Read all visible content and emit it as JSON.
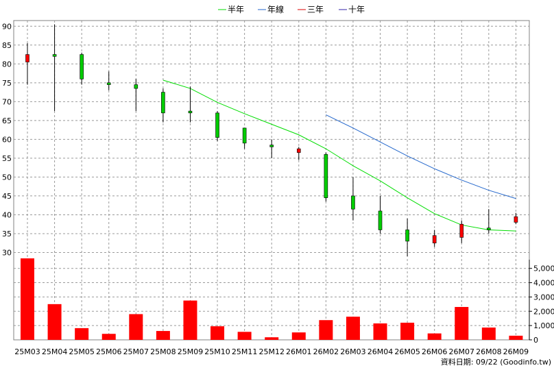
{
  "chart_data": {
    "type": "candlestick+volume",
    "legend": [
      {
        "label": "半年",
        "color": "#00dd00"
      },
      {
        "label": "年線",
        "color": "#2266cc"
      },
      {
        "label": "三年",
        "color": "#dd0000"
      },
      {
        "label": "十年",
        "color": "#3322aa"
      }
    ],
    "categories": [
      "25M03",
      "25M04",
      "25M05",
      "25M06",
      "25M07",
      "25M08",
      "25M09",
      "25M10",
      "25M11",
      "25M12",
      "26M01",
      "26M02",
      "26M03",
      "26M04",
      "26M05",
      "26M06",
      "26M07",
      "26M08",
      "26M09"
    ],
    "price_axis": {
      "ylim": [
        27,
        91.5
      ],
      "ticks": [
        30,
        35,
        40,
        45,
        50,
        55,
        60,
        65,
        70,
        75,
        80,
        85,
        90
      ]
    },
    "volume_axis": {
      "ylim": [
        0,
        5800
      ],
      "ticks": [
        0,
        1000,
        2000,
        3000,
        4000,
        5000
      ],
      "tick_labels": [
        "0",
        "1,000",
        "2,000",
        "3,000",
        "4,000",
        "5,000"
      ]
    },
    "candles": [
      {
        "open": 80.5,
        "close": 82.5,
        "high": 85.5,
        "low": 74.5
      },
      {
        "open": 82.5,
        "close": 82.0,
        "high": 90.5,
        "low": 67.5
      },
      {
        "open": 82.5,
        "close": 76.0,
        "high": 83.0,
        "low": 74.5
      },
      {
        "open": 75.0,
        "close": 74.5,
        "high": 78.0,
        "low": 73.0
      },
      {
        "open": 74.5,
        "close": 73.5,
        "high": 76.0,
        "low": 67.5
      },
      {
        "open": 72.5,
        "close": 67.0,
        "high": 73.5,
        "low": 64.5
      },
      {
        "open": 67.5,
        "close": 67.0,
        "high": 74.0,
        "low": 64.5
      },
      {
        "open": 67.0,
        "close": 60.5,
        "high": 67.5,
        "low": 59.5
      },
      {
        "open": 63.0,
        "close": 59.0,
        "high": 63.0,
        "low": 57.5
      },
      {
        "open": 58.5,
        "close": 58.0,
        "high": 60.0,
        "low": 55.0
      },
      {
        "open": 56.5,
        "close": 57.5,
        "high": 58.0,
        "low": 54.5
      },
      {
        "open": 56.0,
        "close": 44.5,
        "high": 56.5,
        "low": 43.5
      },
      {
        "open": 45.0,
        "close": 41.5,
        "high": 50.0,
        "low": 38.5
      },
      {
        "open": 41.0,
        "close": 36.0,
        "high": 45.0,
        "low": 35.0
      },
      {
        "open": 36.0,
        "close": 33.0,
        "high": 39.0,
        "low": 29.0
      },
      {
        "open": 32.5,
        "close": 34.5,
        "high": 36.0,
        "low": 31.5
      },
      {
        "open": 34.0,
        "close": 37.5,
        "high": 38.5,
        "low": 32.5
      },
      {
        "open": 36.5,
        "close": 36.0,
        "high": 41.5,
        "low": 35.0
      },
      {
        "open": 38.0,
        "close": 39.5,
        "high": 40.5,
        "low": 37.5
      }
    ],
    "half_year_ma": [
      null,
      null,
      null,
      null,
      null,
      75.7,
      73.5,
      69.8,
      66.8,
      64.0,
      61.2,
      57.5,
      53.0,
      49.0,
      44.5,
      40.3,
      37.3,
      36.0,
      35.7
    ],
    "annual_ma": [
      null,
      null,
      null,
      null,
      null,
      null,
      null,
      null,
      null,
      null,
      null,
      66.5,
      63.0,
      59.3,
      55.6,
      52.2,
      49.2,
      46.5,
      44.3
    ],
    "volume": [
      5700,
      2500,
      820,
      420,
      1800,
      620,
      2750,
      950,
      560,
      180,
      520,
      1380,
      1620,
      1150,
      1200,
      450,
      2300,
      860,
      290
    ],
    "footer": "資料日期: 09/22  (Goodinfo.tw)"
  }
}
